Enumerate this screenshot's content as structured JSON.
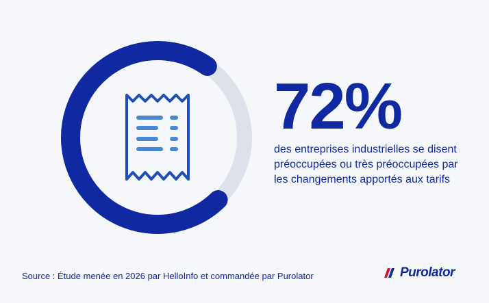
{
  "chart_data": {
    "type": "donut",
    "value": 72,
    "max": 100,
    "label": "72%",
    "description": "des entreprises industrielles se disent préoccupées ou très préoccupées par les changements apportés aux tarifs"
  },
  "icon": "receipt-icon",
  "colors": {
    "primary": "#1028a0",
    "track": "#dde2ea",
    "icon": "#1e4fb4",
    "icon_lines": "#4a86d8",
    "accent_red": "#d7102b",
    "background": "#f5f7fa"
  },
  "footer": {
    "source": "Source : Étude menée en 2026 par HelloInfo et commandée par Purolator",
    "brand": "Purolator"
  }
}
